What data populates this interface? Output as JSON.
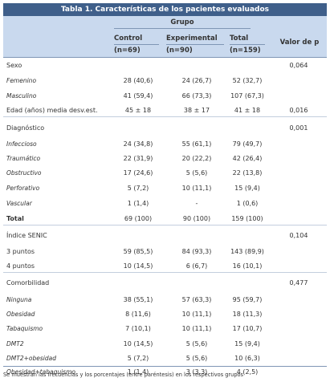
{
  "title": "Tabla 1. Características de los pacientes evaluados",
  "header": {
    "group": "Grupo",
    "control": "Control",
    "control_n": "(n=69)",
    "experimental": "Experimental",
    "experimental_n": "(n=90)",
    "total": "Total",
    "total_n": "(n=159)",
    "pvalue": "Valor de p"
  },
  "rows": [
    {
      "label": "Sexo",
      "control": "",
      "experimental": "",
      "total": "",
      "p": "0,064"
    },
    {
      "label": "Femenino",
      "control": "28 (40,6)",
      "experimental": "24 (26,7)",
      "total": "52 (32,7)",
      "p": ""
    },
    {
      "label": "Masculino",
      "control": "41 (59,4)",
      "experimental": "66 (73,3)",
      "total": "107 (67,3)",
      "p": ""
    },
    {
      "label": "Edad (años) media desv.est.",
      "control": "45 ± 18",
      "experimental": "38 ± 17",
      "total": "41 ± 18",
      "p": "0,016"
    },
    {
      "label": "Diagnóstico",
      "control": "",
      "experimental": "",
      "total": "",
      "p": "0,001"
    },
    {
      "label": "Infeccioso",
      "control": "24 (34,8)",
      "experimental": "55 (61,1)",
      "total": "79 (49,7)",
      "p": ""
    },
    {
      "label": "Traumático",
      "control": "22 (31,9)",
      "experimental": "20 (22,2)",
      "total": "42 (26,4)",
      "p": ""
    },
    {
      "label": "Obstructivo",
      "control": "17 (24,6)",
      "experimental": "5 (5,6)",
      "total": "22 (13,8)",
      "p": ""
    },
    {
      "label": "Perforativo",
      "control": "5 (7,2)",
      "experimental": "10 (11,1)",
      "total": "15 (9,4)",
      "p": ""
    },
    {
      "label": "Vascular",
      "control": "1 (1,4)",
      "experimental": "-",
      "total": "1 (0,6)",
      "p": ""
    },
    {
      "label": "Total",
      "control": "69 (100)",
      "experimental": "90 (100)",
      "total": "159 (100)",
      "p": ""
    },
    {
      "label": "Índice SENIC",
      "control": "",
      "experimental": "",
      "total": "",
      "p": "0,104"
    },
    {
      "label": "3 puntos",
      "control": "59 (85,5)",
      "experimental": "84 (93,3)",
      "total": "143 (89,9)",
      "p": ""
    },
    {
      "label": "4 puntos",
      "control": "10 (14,5)",
      "experimental": "6 (6,7)",
      "total": "16 (10,1)",
      "p": ""
    },
    {
      "label": "Comorbilidad",
      "control": "",
      "experimental": "",
      "total": "",
      "p": "0,477"
    },
    {
      "label": "Ninguna",
      "control": "38 (55,1)",
      "experimental": "57 (63,3)",
      "total": "95 (59,7)",
      "p": ""
    },
    {
      "label": "Obesidad",
      "control": "8 (11,6)",
      "experimental": "10 (11,1)",
      "total": "18 (11,3)",
      "p": ""
    },
    {
      "label": "Tabaquismo",
      "control": "7 (10,1)",
      "experimental": "10 (11,1)",
      "total": "17 (10,7)",
      "p": ""
    },
    {
      "label": "DMT2",
      "control": "10 (14,5)",
      "experimental": "5 (5,6)",
      "total": "15 (9,4)",
      "p": ""
    },
    {
      "label": "DMT2+obesidad",
      "control": "5 (7,2)",
      "experimental": "5 (5,6)",
      "total": "10 (6,3)",
      "p": ""
    },
    {
      "label": "Obesidad+tabaquismo",
      "control": "1 (1,4)",
      "experimental": "3 (3,3)",
      "total": "4 (2,5)",
      "p": ""
    }
  ],
  "footnote": "Se muestran las frecuencias y los porcentajes (entre paréntesis) en los respectivos grupos"
}
